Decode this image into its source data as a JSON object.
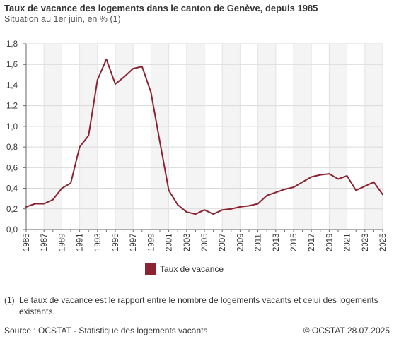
{
  "chart_data": {
    "type": "line",
    "title": "Taux de vacance des logements dans le canton de Genève, depuis 1985",
    "subtitle": "Situation au 1er juin, en % (1)",
    "xlabel": "",
    "ylabel": "",
    "xlim": [
      1985,
      2025
    ],
    "ylim": [
      0,
      1.8
    ],
    "yticks": [
      "0,0",
      "0,2",
      "0,4",
      "0,6",
      "0,8",
      "1,0",
      "1,2",
      "1,4",
      "1,6",
      "1,8"
    ],
    "xticks": [
      "1985",
      "1987",
      "1989",
      "1991",
      "1993",
      "1995",
      "1997",
      "1999",
      "2001",
      "2003",
      "2005",
      "2007",
      "2009",
      "2011",
      "2013",
      "2015",
      "2017",
      "2019",
      "2021",
      "2023",
      "2025"
    ],
    "grid": true,
    "legend_position": "bottom",
    "series": [
      {
        "name": "Taux de vacance",
        "color": "#8b2332",
        "x": [
          1985,
          1986,
          1987,
          1988,
          1989,
          1990,
          1991,
          1992,
          1993,
          1994,
          1995,
          1996,
          1997,
          1998,
          1999,
          2000,
          2001,
          2002,
          2003,
          2004,
          2005,
          2006,
          2007,
          2008,
          2009,
          2010,
          2011,
          2012,
          2013,
          2014,
          2015,
          2016,
          2017,
          2018,
          2019,
          2020,
          2021,
          2022,
          2023,
          2024,
          2025
        ],
        "values": [
          0.22,
          0.25,
          0.25,
          0.29,
          0.4,
          0.45,
          0.8,
          0.91,
          1.45,
          1.65,
          1.41,
          1.48,
          1.56,
          1.58,
          1.33,
          0.85,
          0.38,
          0.24,
          0.17,
          0.15,
          0.19,
          0.15,
          0.19,
          0.2,
          0.22,
          0.23,
          0.25,
          0.33,
          0.36,
          0.39,
          0.41,
          0.46,
          0.51,
          0.53,
          0.54,
          0.49,
          0.52,
          0.38,
          0.42,
          0.46,
          0.34
        ]
      }
    ]
  },
  "legend": {
    "label": "Taux de vacance",
    "color": "#8b2332"
  },
  "footnote": {
    "number": "(1)",
    "text": "Le taux de vacance est le rapport entre le nombre de logements vacants et celui des logements existants."
  },
  "source": "Source : OCSTAT - Statistique des logements vacants",
  "copyright": "© OCSTAT 28.07.2025"
}
